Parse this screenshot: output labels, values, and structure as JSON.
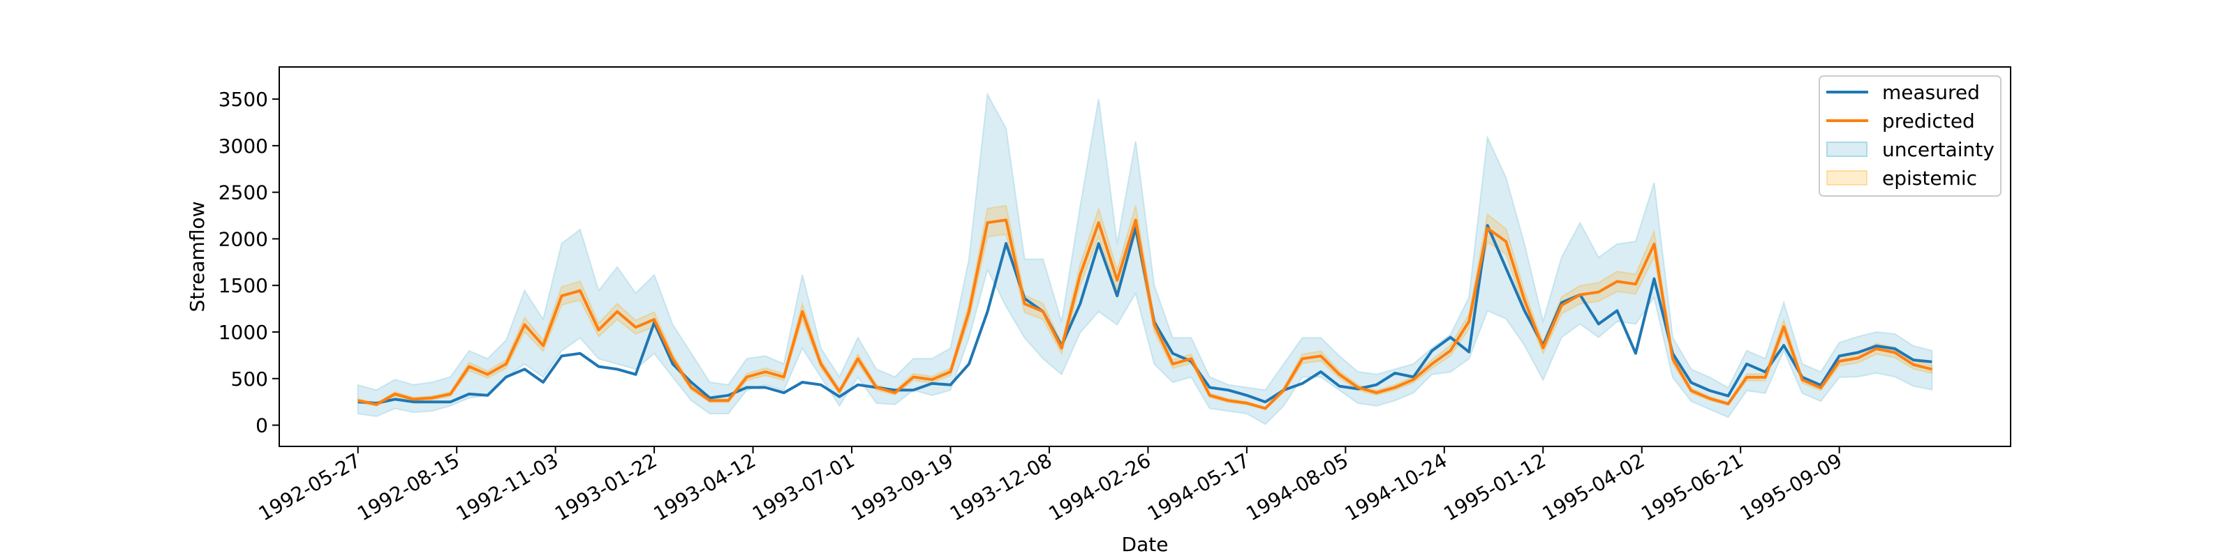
{
  "chart_data": {
    "type": "line",
    "title": "",
    "xlabel": "Date",
    "ylabel": "Streamflow",
    "x_start_date": "1992-05-27",
    "x_step_days": 15,
    "xlim_days": [
      -63.75,
      1338.75
    ],
    "ylim": [
      -228,
      3845
    ],
    "grid": false,
    "legend_position": "top-right",
    "x_ticks": [
      {
        "day": 0,
        "label": "1992-05-27"
      },
      {
        "day": 80,
        "label": "1992-08-15"
      },
      {
        "day": 160,
        "label": "1992-11-03"
      },
      {
        "day": 240,
        "label": "1993-01-22"
      },
      {
        "day": 320,
        "label": "1993-04-12"
      },
      {
        "day": 400,
        "label": "1993-07-01"
      },
      {
        "day": 480,
        "label": "1993-09-19"
      },
      {
        "day": 560,
        "label": "1993-12-08"
      },
      {
        "day": 640,
        "label": "1994-02-26"
      },
      {
        "day": 720,
        "label": "1994-05-17"
      },
      {
        "day": 800,
        "label": "1994-08-05"
      },
      {
        "day": 880,
        "label": "1994-10-24"
      },
      {
        "day": 960,
        "label": "1995-01-12"
      },
      {
        "day": 1040,
        "label": "1995-04-02"
      },
      {
        "day": 1120,
        "label": "1995-06-21"
      },
      {
        "day": 1200,
        "label": "1995-09-09"
      }
    ],
    "y_ticks": [
      {
        "value": 0,
        "label": "0"
      },
      {
        "value": 500,
        "label": "500"
      },
      {
        "value": 1000,
        "label": "1000"
      },
      {
        "value": 1500,
        "label": "1500"
      },
      {
        "value": 2000,
        "label": "2000"
      },
      {
        "value": 2500,
        "label": "2500"
      },
      {
        "value": 3000,
        "label": "3000"
      },
      {
        "value": 3500,
        "label": "3500"
      }
    ],
    "legend": [
      {
        "label": "measured",
        "kind": "line",
        "color": "#1f77b4"
      },
      {
        "label": "predicted",
        "kind": "line",
        "color": "#ff7f0e"
      },
      {
        "label": "uncertainty",
        "kind": "band",
        "color": "#add8e6"
      },
      {
        "label": "epistemic",
        "kind": "band",
        "color": "#ffa500"
      }
    ],
    "series": [
      {
        "name": "measured",
        "color": "#1f77b4",
        "values": [
          250,
          236,
          278,
          250,
          250,
          250,
          334,
          320,
          517,
          601,
          461,
          742,
          770,
          629,
          601,
          545,
          1100,
          657,
          461,
          292,
          320,
          405,
          405,
          348,
          461,
          433,
          306,
          433,
          405,
          376,
          376,
          447,
          433,
          657,
          1219,
          1950,
          1360,
          1219,
          854,
          1303,
          1949,
          1388,
          2118,
          1107,
          770,
          685,
          405,
          376,
          320,
          250,
          376,
          447,
          573,
          419,
          390,
          433,
          559,
          517,
          798,
          943,
          786,
          2143,
          1686,
          1229,
          857,
          1314,
          1400,
          1086,
          1229,
          771,
          1571,
          771,
          457,
          371,
          314,
          657,
          571,
          857,
          514,
          429,
          743,
          780,
          850,
          820,
          700,
          680
        ]
      },
      {
        "name": "predicted",
        "color": "#ff7f0e",
        "values": [
          264,
          222,
          334,
          278,
          292,
          334,
          629,
          545,
          657,
          1079,
          854,
          1388,
          1444,
          1022,
          1219,
          1051,
          1135,
          713,
          405,
          264,
          264,
          517,
          573,
          517,
          1219,
          657,
          362,
          713,
          405,
          348,
          517,
          489,
          573,
          1219,
          2174,
          2202,
          1303,
          1219,
          826,
          1612,
          2174,
          1556,
          2202,
          1079,
          657,
          713,
          320,
          264,
          236,
          180,
          376,
          713,
          742,
          545,
          405,
          348,
          405,
          489,
          657,
          800,
          1114,
          2114,
          1971,
          1343,
          829,
          1286,
          1400,
          1429,
          1543,
          1514,
          1943,
          714,
          371,
          286,
          229,
          514,
          514,
          1057,
          486,
          400,
          686,
          720,
          820,
          780,
          650,
          600
        ]
      }
    ],
    "bands": {
      "uncertainty": {
        "color": "#add8e6",
        "lower": [
          124,
          95,
          180,
          138,
          152,
          208,
          292,
          320,
          517,
          657,
          517,
          798,
          938,
          713,
          657,
          601,
          770,
          517,
          264,
          124,
          124,
          376,
          432,
          376,
          826,
          517,
          208,
          517,
          236,
          222,
          376,
          320,
          376,
          938,
          1669,
          1275,
          938,
          713,
          545,
          994,
          1219,
          1079,
          1416,
          657,
          461,
          517,
          180,
          152,
          124,
          11,
          208,
          517,
          517,
          376,
          236,
          208,
          264,
          348,
          545,
          571,
          714,
          1229,
          1143,
          857,
          486,
          943,
          1086,
          943,
          1114,
          1086,
          1371,
          514,
          257,
          171,
          86,
          371,
          343,
          800,
          343,
          257,
          514,
          520,
          560,
          520,
          420,
          380
        ],
        "upper": [
          430,
          376,
          489,
          432,
          460,
          517,
          798,
          713,
          910,
          1444,
          1135,
          1949,
          2100,
          1444,
          1697,
          1416,
          1612,
          1079,
          770,
          460,
          432,
          713,
          742,
          657,
          1612,
          826,
          517,
          938,
          601,
          517,
          713,
          713,
          826,
          1781,
          3550,
          3185,
          1781,
          1781,
          1107,
          2343,
          3500,
          1949,
          3045,
          1500,
          938,
          938,
          517,
          433,
          405,
          376,
          657,
          938,
          938,
          742,
          573,
          545,
          601,
          657,
          826,
          971,
          1371,
          3086,
          2657,
          1943,
          1114,
          1800,
          2171,
          1800,
          1943,
          1971,
          2600,
          943,
          600,
          514,
          400,
          800,
          714,
          1314,
          657,
          571,
          886,
          950,
          1000,
          980,
          850,
          800
        ]
      },
      "epistemic": {
        "color": "#ffa500",
        "relative_halfwidth_of_predicted": 0.07
      }
    }
  }
}
